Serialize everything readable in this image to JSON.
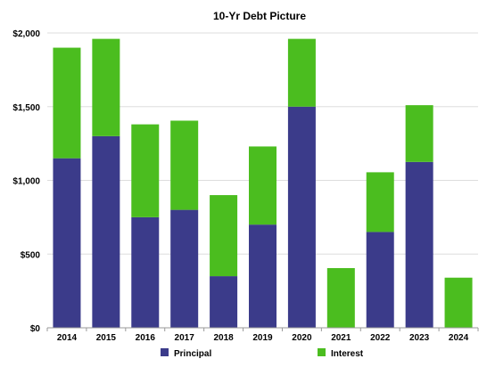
{
  "chart_data": {
    "type": "bar",
    "stacked": true,
    "title": "10-Yr Debt Picture",
    "xlabel": "",
    "ylabel": "",
    "categories": [
      "2014",
      "2015",
      "2016",
      "2017",
      "2018",
      "2019",
      "2020",
      "2021",
      "2022",
      "2023",
      "2024"
    ],
    "series": [
      {
        "name": "Principal",
        "color": "#3b3b8a",
        "values": [
          1150,
          1300,
          750,
          800,
          350,
          700,
          1500,
          0,
          650,
          1125,
          0
        ]
      },
      {
        "name": "Interest",
        "color": "#4bbd1f",
        "values": [
          750,
          660,
          630,
          605,
          550,
          530,
          460,
          405,
          405,
          385,
          340
        ]
      }
    ],
    "ylim": [
      0,
      2000
    ],
    "yticks": [
      0,
      500,
      1000,
      1500,
      2000
    ],
    "ytick_labels": [
      "$0",
      "$500",
      "$1,000",
      "$1,500",
      "$2,000"
    ],
    "grid": "horizontal",
    "legend_position": "bottom",
    "gridline_color": "#dddddd",
    "axis_color": "#999999"
  }
}
